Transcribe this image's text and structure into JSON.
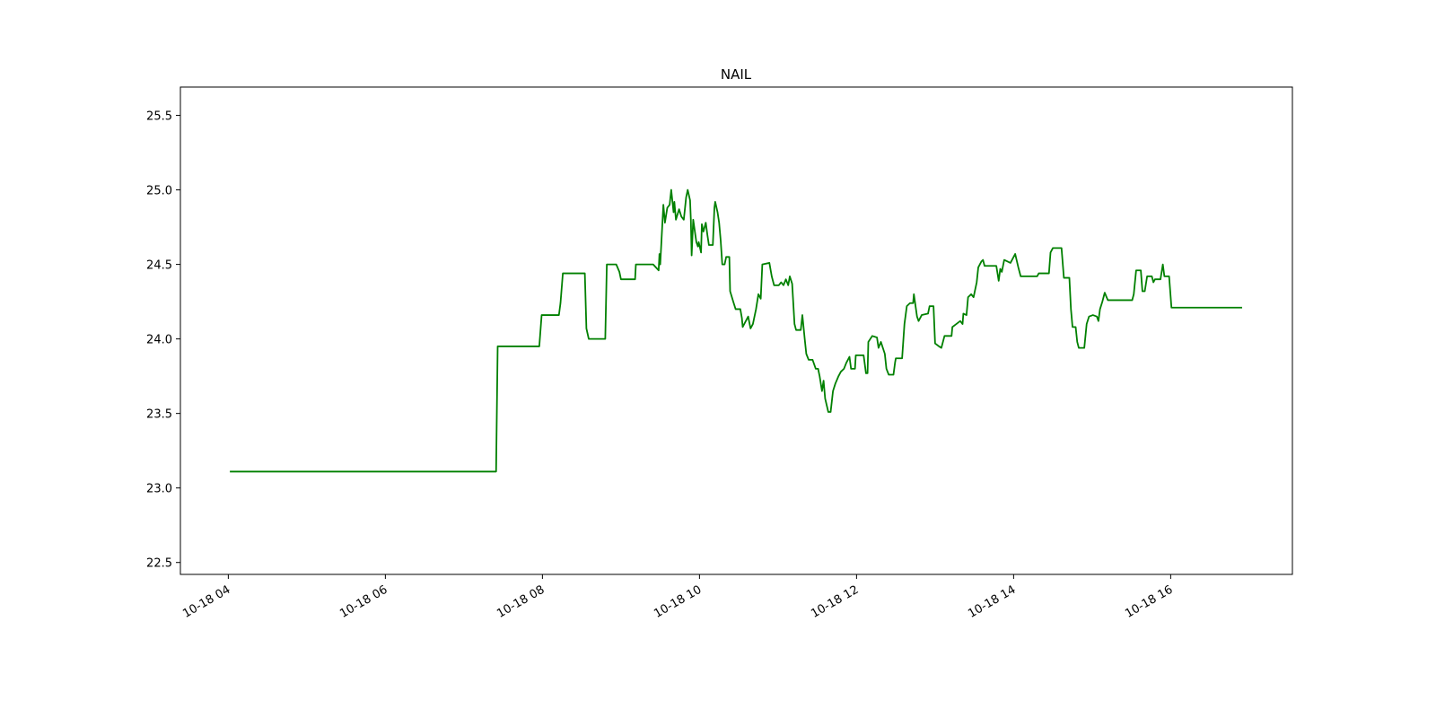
{
  "chart_data": {
    "type": "line",
    "title": "NAIL",
    "xlim": [
      3.39,
      17.55
    ],
    "xticks": [
      {
        "value": 4,
        "label": "10-18 04"
      },
      {
        "value": 6,
        "label": "10-18 06"
      },
      {
        "value": 8,
        "label": "10-18 08"
      },
      {
        "value": 10,
        "label": "10-18 10"
      },
      {
        "value": 12,
        "label": "10-18 12"
      },
      {
        "value": 14,
        "label": "10-18 14"
      },
      {
        "value": 16,
        "label": "10-18 16"
      }
    ],
    "ylim": [
      22.42,
      25.69
    ],
    "yticks": [
      22.5,
      {
        "value": 23,
        "label": "23.0"
      },
      23.5,
      {
        "value": 24,
        "label": "24.0"
      },
      24.5,
      {
        "value": 25,
        "label": "25.0"
      },
      25.5
    ],
    "grid": false,
    "x": [
      4.02,
      7.41,
      7.43,
      7.96,
      7.99,
      8.21,
      8.23,
      8.26,
      8.54,
      8.56,
      8.59,
      8.8,
      8.82,
      8.94,
      8.98,
      9.0,
      9.18,
      9.19,
      9.41,
      9.48,
      9.49,
      9.5,
      9.54,
      9.56,
      9.59,
      9.62,
      9.64,
      9.67,
      9.68,
      9.7,
      9.74,
      9.77,
      9.8,
      9.83,
      9.85,
      9.88,
      9.89,
      9.9,
      9.92,
      9.96,
      9.98,
      9.99,
      10.02,
      10.03,
      10.05,
      10.08,
      10.1,
      10.12,
      10.17,
      10.19,
      10.2,
      10.23,
      10.25,
      10.27,
      10.29,
      10.32,
      10.34,
      10.38,
      10.39,
      10.43,
      10.46,
      10.52,
      10.54,
      10.55,
      10.59,
      10.62,
      10.65,
      10.68,
      10.72,
      10.75,
      10.78,
      10.8,
      10.89,
      10.92,
      10.95,
      11.01,
      11.04,
      11.07,
      11.1,
      11.13,
      11.15,
      11.18,
      11.21,
      11.23,
      11.29,
      11.31,
      11.34,
      11.36,
      11.39,
      11.44,
      11.48,
      11.51,
      11.53,
      11.56,
      11.58,
      11.6,
      11.64,
      11.67,
      11.7,
      11.73,
      11.77,
      11.8,
      11.84,
      11.87,
      11.91,
      11.93,
      11.98,
      11.99,
      12.09,
      12.12,
      12.14,
      12.15,
      12.2,
      12.26,
      12.28,
      12.31,
      12.36,
      12.38,
      12.41,
      12.47,
      12.49,
      12.5,
      12.58,
      12.61,
      12.64,
      12.68,
      12.72,
      12.73,
      12.77,
      12.79,
      12.83,
      12.91,
      12.93,
      12.98,
      13.0,
      13.05,
      13.08,
      13.12,
      13.21,
      13.22,
      13.27,
      13.32,
      13.35,
      13.36,
      13.4,
      13.42,
      13.46,
      13.49,
      13.53,
      13.55,
      13.59,
      13.61,
      13.63,
      13.78,
      13.81,
      13.83,
      13.85,
      13.88,
      13.96,
      13.99,
      14.02,
      14.06,
      14.09,
      14.3,
      14.32,
      14.45,
      14.47,
      14.5,
      14.61,
      14.64,
      14.71,
      14.73,
      14.75,
      14.79,
      14.81,
      14.83,
      14.9,
      14.93,
      14.96,
      15.01,
      15.06,
      15.08,
      15.1,
      15.13,
      15.16,
      15.2,
      15.51,
      15.53,
      15.56,
      15.62,
      15.64,
      15.67,
      15.7,
      15.76,
      15.78,
      15.8,
      15.87,
      15.9,
      15.92,
      15.98,
      16.01,
      16.91
    ],
    "series": [
      {
        "name": "NAIL",
        "color": "#008000",
        "values": [
          23.11,
          23.11,
          23.95,
          23.95,
          24.16,
          24.16,
          24.24,
          24.44,
          24.44,
          24.07,
          24.0,
          24.0,
          24.5,
          24.5,
          24.45,
          24.4,
          24.4,
          24.5,
          24.5,
          24.46,
          24.57,
          24.5,
          24.9,
          24.78,
          24.88,
          24.9,
          25.0,
          24.85,
          24.92,
          24.8,
          24.87,
          24.82,
          24.8,
          24.95,
          25.0,
          24.93,
          24.8,
          24.56,
          24.8,
          24.65,
          24.62,
          24.65,
          24.58,
          24.77,
          24.72,
          24.78,
          24.7,
          24.63,
          24.63,
          24.88,
          24.92,
          24.85,
          24.78,
          24.66,
          24.5,
          24.5,
          24.55,
          24.55,
          24.32,
          24.25,
          24.2,
          24.2,
          24.14,
          24.08,
          24.12,
          24.15,
          24.07,
          24.1,
          24.2,
          24.3,
          24.27,
          24.5,
          24.51,
          24.42,
          24.36,
          24.36,
          24.38,
          24.36,
          24.4,
          24.36,
          24.42,
          24.37,
          24.1,
          24.06,
          24.06,
          24.16,
          24.0,
          23.9,
          23.86,
          23.86,
          23.8,
          23.8,
          23.75,
          23.65,
          23.72,
          23.6,
          23.51,
          23.51,
          23.65,
          23.7,
          23.75,
          23.78,
          23.8,
          23.84,
          23.88,
          23.8,
          23.8,
          23.89,
          23.89,
          23.77,
          23.77,
          23.98,
          24.02,
          24.01,
          23.94,
          23.98,
          23.9,
          23.8,
          23.76,
          23.76,
          23.84,
          23.87,
          23.87,
          24.1,
          24.22,
          24.24,
          24.24,
          24.3,
          24.15,
          24.12,
          24.16,
          24.17,
          24.22,
          24.22,
          23.97,
          23.95,
          23.94,
          24.02,
          24.02,
          24.08,
          24.1,
          24.12,
          24.1,
          24.17,
          24.16,
          24.28,
          24.3,
          24.28,
          24.38,
          24.48,
          24.52,
          24.53,
          24.49,
          24.49,
          24.39,
          24.47,
          24.45,
          24.53,
          24.51,
          24.54,
          24.57,
          24.48,
          24.42,
          24.42,
          24.44,
          24.44,
          24.58,
          24.61,
          24.61,
          24.41,
          24.41,
          24.2,
          24.08,
          24.08,
          23.98,
          23.94,
          23.94,
          24.1,
          24.15,
          24.16,
          24.15,
          24.12,
          24.2,
          24.25,
          24.31,
          24.26,
          24.26,
          24.3,
          24.46,
          24.46,
          24.32,
          24.32,
          24.42,
          24.42,
          24.38,
          24.4,
          24.4,
          24.5,
          24.42,
          24.42,
          24.21,
          24.21
        ]
      }
    ]
  }
}
